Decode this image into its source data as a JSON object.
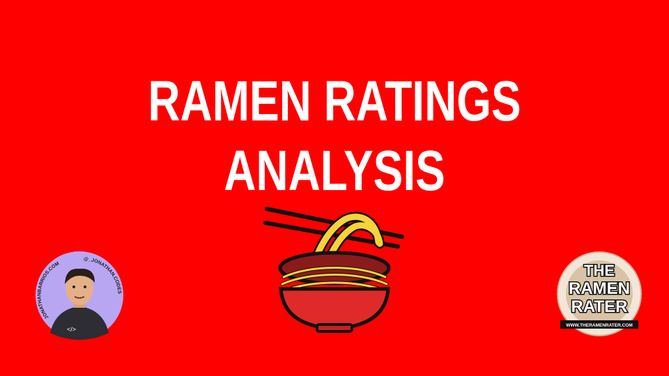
{
  "slide": {
    "title": "RAMEN RATINGS ANALYSIS"
  },
  "avatar": {
    "left_handle": "JONATHANBARRIOS.COM",
    "right_handle": "@_JONATHAN.CODES",
    "code_glyph": "</>"
  },
  "logo": {
    "line1": "THE",
    "line2": "RAMEN",
    "line3": "RATER",
    "url": "WWW.THERAMENRATER.COM"
  },
  "colors": {
    "background": "#ff0000",
    "title": "#ffffff",
    "noodles": "#f7d23a",
    "bowl": "#e02a2a"
  },
  "icons": {
    "center": "ramen-bowl-icon"
  }
}
